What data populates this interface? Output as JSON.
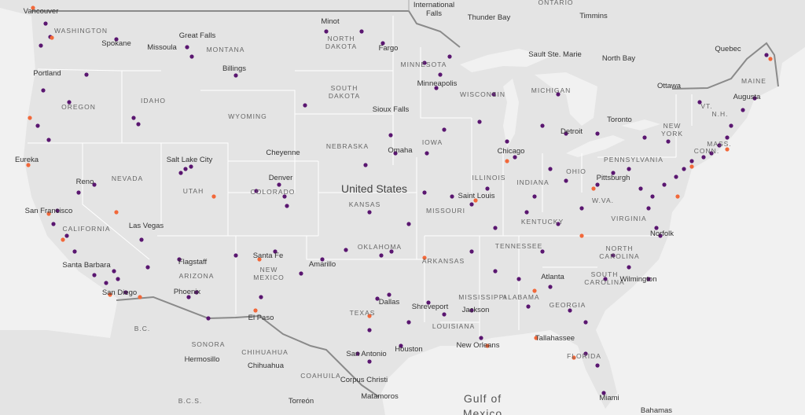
{
  "map": {
    "country_label": "United States",
    "water_labels": [
      "Gulf of",
      "Mexico"
    ],
    "cities": [
      "Vancouver",
      "Spokane",
      "Great Falls",
      "Missoula",
      "Billings",
      "Minot",
      "Fargo",
      "Minneapolis",
      "Sioux Falls",
      "Portland",
      "Eureka",
      "Reno",
      "Salt Lake City",
      "Cheyenne",
      "Denver",
      "San Francisco",
      "Las Vegas",
      "Santa Barbara",
      "San Diego",
      "Flagstaff",
      "Phoenix",
      "Santa Fe",
      "Amarillo",
      "El Paso",
      "Omaha",
      "Chicago",
      "Saint Louis",
      "Detroit",
      "Toronto",
      "Ottawa",
      "Quebec",
      "North Bay",
      "Sault Ste. Marie",
      "Thunder Bay",
      "Timmins",
      "Pittsburgh",
      "Augusta",
      "Dallas",
      "Shreveport",
      "Jackson",
      "Atlanta",
      "Wilmington",
      "Norfolk",
      "Tallahassee",
      "New Orleans",
      "Houston",
      "San Antonio",
      "Corpus Christi",
      "Matamoros",
      "Miami",
      "Bahamas",
      "Hermosillo",
      "Chihuahua",
      "Torreón",
      "International",
      "Falls"
    ],
    "regions": [
      "WASHINGTON",
      "OREGON",
      "IDAHO",
      "MONTANA",
      "WYOMING",
      "NORTH",
      "DAKOTA",
      "SOUTH",
      "DAKOTA",
      "MINNESOTA",
      "WISCONSIN",
      "MICHIGAN",
      "NEBRASKA",
      "IOWA",
      "ILLINOIS",
      "INDIANA",
      "OHIO",
      "PENNSYLVANIA",
      "NEW",
      "YORK",
      "MAINE",
      "VT.",
      "N.H.",
      "MASS.",
      "CONN.",
      "NEVADA",
      "UTAH",
      "COLORADO",
      "KANSAS",
      "MISSOURI",
      "KENTUCKY",
      "W.VA.",
      "VIRGINIA",
      "TENNESSEE",
      "NORTH",
      "CAROLINA",
      "SOUTH",
      "CAROLINA",
      "ARKANSAS",
      "OKLAHOMA",
      "TEXAS",
      "NEW",
      "MEXICO",
      "ARIZONA",
      "CALIFORNIA",
      "MISSISSIPPI",
      "ALABAMA",
      "GEORGIA",
      "LOUISIANA",
      "FLORIDA",
      "ONTARIO",
      "SONORA",
      "CHIHUAHUA",
      "COAHUILA",
      "B.C.",
      "B.C.S."
    ]
  }
}
